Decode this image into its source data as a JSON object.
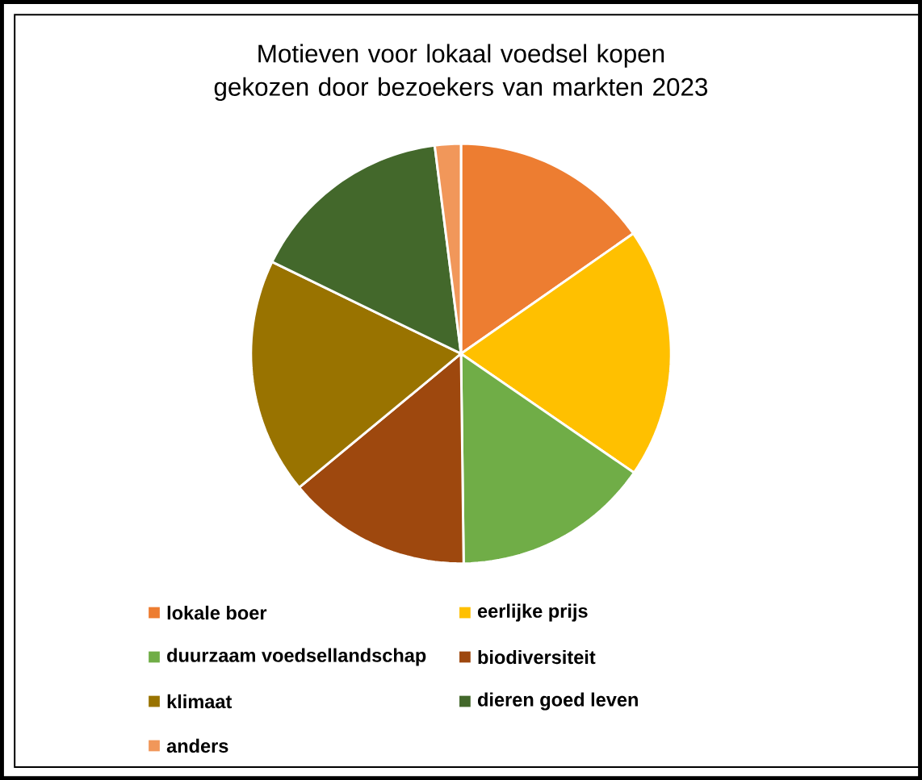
{
  "chart_data": {
    "type": "pie",
    "title": "Motieven voor lokaal voedsel kopen gekozen door bezoekers van markten 2023",
    "categories": [
      "lokale boer",
      "eerlijke prijs",
      "duurzaam voedsellandschap",
      "biodiversiteit",
      "klimaat",
      "dieren goed leven",
      "anders"
    ],
    "values": [
      15.3,
      19.3,
      15.2,
      14.2,
      18.2,
      15.8,
      2.0
    ],
    "colors": [
      "#ed7d31",
      "#ffc000",
      "#70ad47",
      "#9e480e",
      "#997300",
      "#43682b",
      "#f1975a"
    ],
    "legend": "bottom"
  }
}
